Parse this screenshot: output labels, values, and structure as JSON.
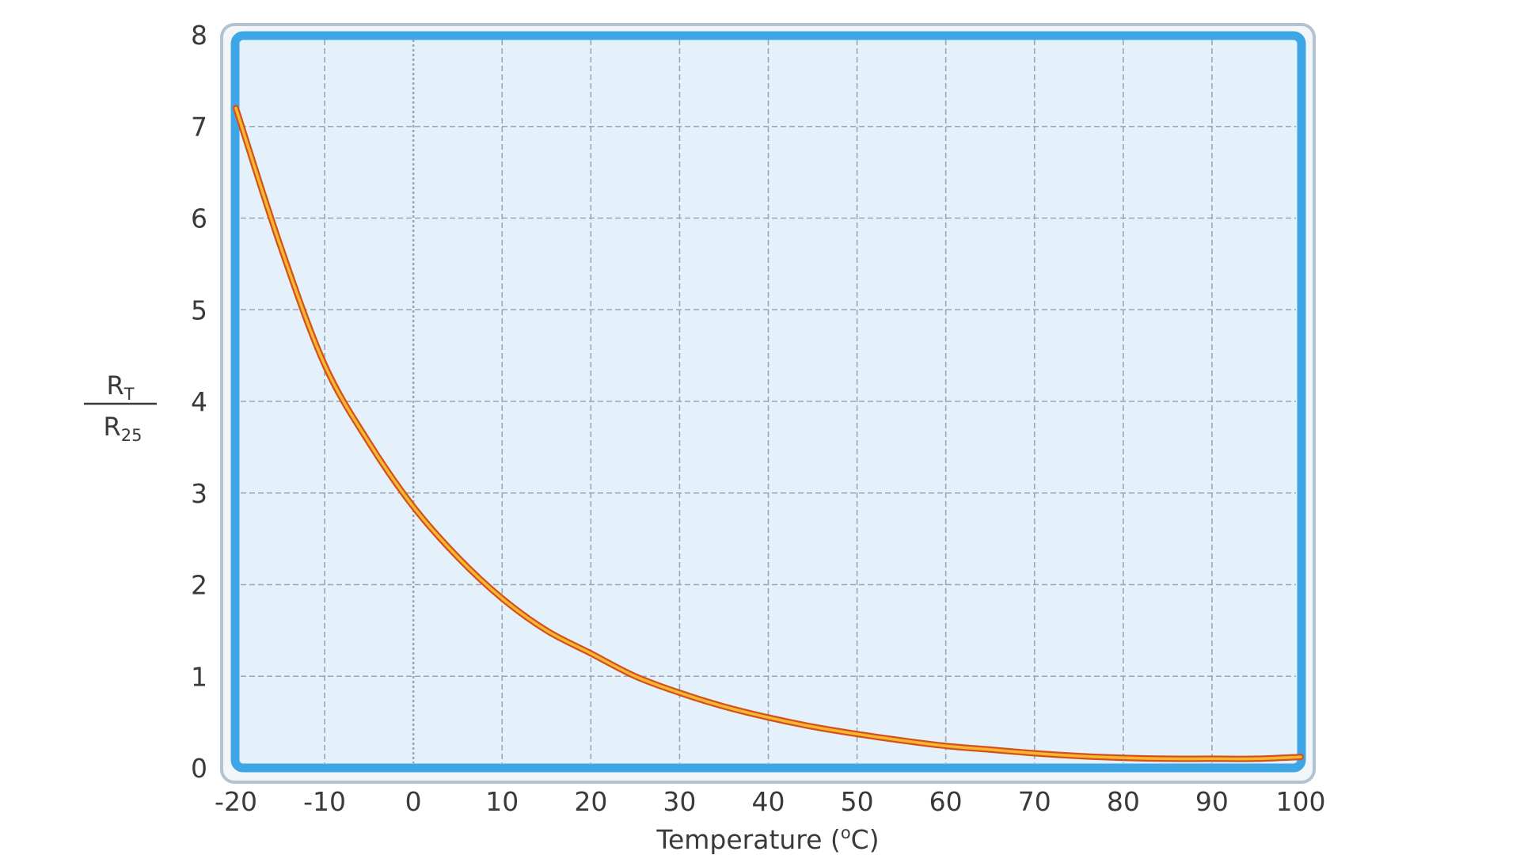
{
  "chart_data": {
    "type": "line",
    "title": "",
    "xlabel": "Temperature (°C)",
    "xlabel_parts": {
      "prefix": "Temperature (",
      "superscript": "o",
      "suffix": "C)"
    },
    "ylabel": "RT / R25",
    "ylabel_parts": {
      "numerator": {
        "base": "R",
        "sub": "T"
      },
      "denominator": {
        "base": "R",
        "sub": "25"
      }
    },
    "xlim": [
      -20,
      100
    ],
    "ylim": [
      0,
      8
    ],
    "x_ticks": [
      "-20",
      "-10",
      "0",
      "10",
      "20",
      "30",
      "40",
      "50",
      "60",
      "70",
      "80",
      "90",
      "100"
    ],
    "y_ticks": [
      "0",
      "1",
      "2",
      "3",
      "4",
      "5",
      "6",
      "7",
      "8"
    ],
    "grid": true,
    "legend": "none",
    "series": [
      {
        "x": [
          -20,
          -15,
          -10,
          -5,
          0,
          5,
          10,
          15,
          20,
          25,
          30,
          35,
          40,
          45,
          50,
          55,
          60,
          65,
          70,
          75,
          80,
          85,
          90,
          95,
          100
        ],
        "y": [
          7.2,
          5.7,
          4.4,
          3.55,
          2.85,
          2.3,
          1.85,
          1.5,
          1.25,
          1.0,
          0.82,
          0.67,
          0.55,
          0.45,
          0.37,
          0.3,
          0.24,
          0.2,
          0.16,
          0.13,
          0.11,
          0.1,
          0.1,
          0.1,
          0.12
        ]
      }
    ],
    "colors": {
      "plot_background": "#e4f1fb",
      "frame_border": "#3ea6e6",
      "frame_outer": "#b3c2d2",
      "grid": "#9aa6b2",
      "line_outer": "#d4521a",
      "line_inner": "#f7b733"
    }
  }
}
